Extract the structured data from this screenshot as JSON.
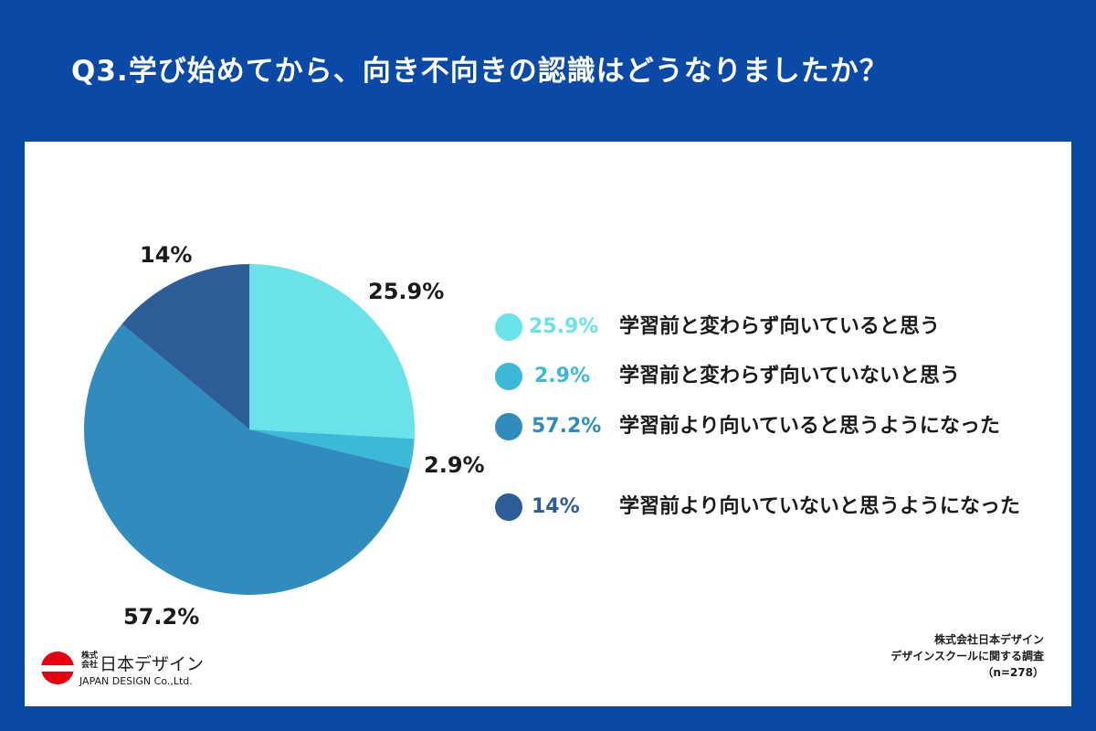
{
  "header": {
    "title": "Q3.学び始めてから、向き不向きの認識はどうなりましたか？"
  },
  "chart_data": {
    "type": "pie",
    "slices": [
      {
        "label": "学習前と変わらず向いていると思う",
        "value": 25.9,
        "display": "25.9%",
        "color": "#6ae3e8"
      },
      {
        "label": "学習前と変わらず向いていないと思う",
        "value": 2.9,
        "display": "2.9%",
        "color": "#3cb8d9"
      },
      {
        "label": "学習前より向いていると思うようになった",
        "value": 57.2,
        "display": "57.2%",
        "color": "#2f8cbc"
      },
      {
        "label": "学習前より向いていないと思うようになった",
        "value": 14,
        "display": "14%",
        "color": "#2c5d97"
      }
    ],
    "legend_position": "right"
  },
  "source": {
    "line1": "株式会社日本デザイン",
    "line2": "デザインスクールに関する調査",
    "line3": "（n=278）"
  },
  "logo": {
    "small_text": "株式会社",
    "name": "日本デザイン",
    "en": "JAPAN DESIGN Co.,Ltd."
  }
}
